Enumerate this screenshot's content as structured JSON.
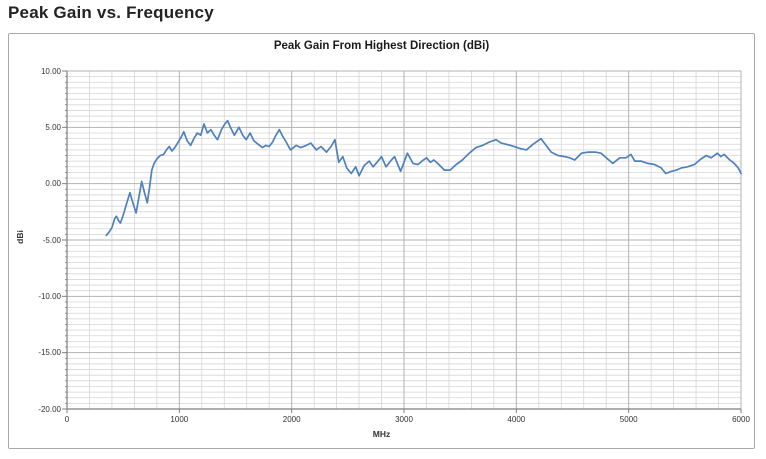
{
  "page": {
    "heading": "Peak Gain vs. Frequency"
  },
  "chart_data": {
    "type": "line",
    "title": "Peak Gain From Highest Direction (dBi)",
    "xlabel": "MHz",
    "ylabel": "dBi",
    "xlim": [
      0,
      6000
    ],
    "ylim": [
      -20,
      10
    ],
    "x_major_step": 1000,
    "x_minor_step": 200,
    "y_major_step": 5,
    "y_minor_step": 0.5,
    "x_tick_labels": [
      "0",
      "1000",
      "2000",
      "3000",
      "4000",
      "5000",
      "6000"
    ],
    "y_tick_labels": [
      "10.00",
      "5.00",
      "0.00",
      "-5.00",
      "-10.00",
      "-15.00",
      "-20.00"
    ],
    "grid": "major-and-minor",
    "legend": "none",
    "line_color": "#4f81bd",
    "grid_minor_color": "#d6d6d6",
    "grid_major_color": "#b3b3b3",
    "axis_color": "#7f7f7f",
    "series": [
      {
        "name": "Peak Gain",
        "points": [
          [
            350,
            -4.6
          ],
          [
            375,
            -4.3
          ],
          [
            400,
            -3.9
          ],
          [
            425,
            -3.1
          ],
          [
            440,
            -2.9
          ],
          [
            460,
            -3.3
          ],
          [
            475,
            -3.5
          ],
          [
            500,
            -2.8
          ],
          [
            530,
            -1.8
          ],
          [
            560,
            -0.8
          ],
          [
            580,
            -1.5
          ],
          [
            615,
            -2.6
          ],
          [
            640,
            -1.2
          ],
          [
            665,
            0.2
          ],
          [
            690,
            -0.8
          ],
          [
            715,
            -1.7
          ],
          [
            735,
            -0.3
          ],
          [
            755,
            1.2
          ],
          [
            775,
            1.8
          ],
          [
            800,
            2.2
          ],
          [
            830,
            2.5
          ],
          [
            860,
            2.6
          ],
          [
            885,
            3.0
          ],
          [
            910,
            3.3
          ],
          [
            935,
            2.9
          ],
          [
            960,
            3.2
          ],
          [
            985,
            3.6
          ],
          [
            1015,
            4.1
          ],
          [
            1040,
            4.6
          ],
          [
            1070,
            3.8
          ],
          [
            1100,
            3.4
          ],
          [
            1130,
            4.0
          ],
          [
            1160,
            4.5
          ],
          [
            1190,
            4.3
          ],
          [
            1220,
            5.3
          ],
          [
            1250,
            4.5
          ],
          [
            1280,
            4.8
          ],
          [
            1310,
            4.3
          ],
          [
            1340,
            3.9
          ],
          [
            1375,
            4.8
          ],
          [
            1405,
            5.3
          ],
          [
            1430,
            5.6
          ],
          [
            1455,
            5.0
          ],
          [
            1490,
            4.3
          ],
          [
            1530,
            5.0
          ],
          [
            1565,
            4.3
          ],
          [
            1595,
            3.9
          ],
          [
            1630,
            4.5
          ],
          [
            1665,
            3.8
          ],
          [
            1700,
            3.5
          ],
          [
            1740,
            3.2
          ],
          [
            1770,
            3.4
          ],
          [
            1800,
            3.3
          ],
          [
            1830,
            3.7
          ],
          [
            1855,
            4.2
          ],
          [
            1890,
            4.8
          ],
          [
            1920,
            4.2
          ],
          [
            1950,
            3.7
          ],
          [
            1990,
            3.0
          ],
          [
            2040,
            3.4
          ],
          [
            2080,
            3.2
          ],
          [
            2130,
            3.4
          ],
          [
            2170,
            3.6
          ],
          [
            2220,
            3.0
          ],
          [
            2260,
            3.3
          ],
          [
            2310,
            2.8
          ],
          [
            2350,
            3.3
          ],
          [
            2385,
            3.9
          ],
          [
            2420,
            1.9
          ],
          [
            2455,
            2.4
          ],
          [
            2490,
            1.4
          ],
          [
            2530,
            0.9
          ],
          [
            2570,
            1.5
          ],
          [
            2600,
            0.7
          ],
          [
            2645,
            1.6
          ],
          [
            2690,
            2.0
          ],
          [
            2725,
            1.5
          ],
          [
            2760,
            1.9
          ],
          [
            2800,
            2.4
          ],
          [
            2840,
            1.5
          ],
          [
            2880,
            2.0
          ],
          [
            2915,
            2.4
          ],
          [
            2970,
            1.1
          ],
          [
            3030,
            2.7
          ],
          [
            3080,
            1.8
          ],
          [
            3125,
            1.7
          ],
          [
            3160,
            2.0
          ],
          [
            3200,
            2.3
          ],
          [
            3235,
            1.9
          ],
          [
            3265,
            2.1
          ],
          [
            3300,
            1.8
          ],
          [
            3360,
            1.2
          ],
          [
            3410,
            1.2
          ],
          [
            3465,
            1.7
          ],
          [
            3520,
            2.1
          ],
          [
            3580,
            2.7
          ],
          [
            3640,
            3.2
          ],
          [
            3700,
            3.4
          ],
          [
            3760,
            3.7
          ],
          [
            3820,
            3.9
          ],
          [
            3865,
            3.6
          ],
          [
            3950,
            3.4
          ],
          [
            4040,
            3.1
          ],
          [
            4090,
            3.0
          ],
          [
            4150,
            3.5
          ],
          [
            4220,
            4.0
          ],
          [
            4265,
            3.4
          ],
          [
            4310,
            2.8
          ],
          [
            4370,
            2.5
          ],
          [
            4430,
            2.4
          ],
          [
            4475,
            2.3
          ],
          [
            4520,
            2.1
          ],
          [
            4580,
            2.7
          ],
          [
            4640,
            2.8
          ],
          [
            4700,
            2.8
          ],
          [
            4755,
            2.7
          ],
          [
            4800,
            2.3
          ],
          [
            4860,
            1.8
          ],
          [
            4920,
            2.3
          ],
          [
            4975,
            2.3
          ],
          [
            5020,
            2.6
          ],
          [
            5055,
            2.0
          ],
          [
            5110,
            2.0
          ],
          [
            5170,
            1.8
          ],
          [
            5230,
            1.7
          ],
          [
            5290,
            1.4
          ],
          [
            5330,
            0.9
          ],
          [
            5380,
            1.1
          ],
          [
            5425,
            1.2
          ],
          [
            5470,
            1.4
          ],
          [
            5525,
            1.5
          ],
          [
            5585,
            1.7
          ],
          [
            5645,
            2.2
          ],
          [
            5690,
            2.5
          ],
          [
            5735,
            2.3
          ],
          [
            5790,
            2.7
          ],
          [
            5820,
            2.4
          ],
          [
            5850,
            2.6
          ],
          [
            5900,
            2.1
          ],
          [
            5940,
            1.8
          ],
          [
            5975,
            1.4
          ],
          [
            6000,
            0.9
          ]
        ]
      }
    ]
  }
}
